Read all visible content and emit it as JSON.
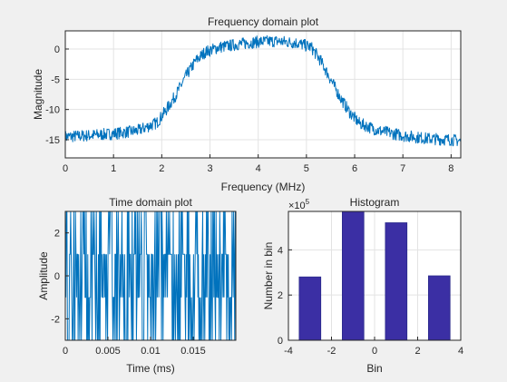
{
  "window": {
    "background": "#f0f0f0"
  },
  "chart_data": [
    {
      "id": "freq",
      "type": "line",
      "title": "Frequency domain plot",
      "xlabel": "Frequency (MHz)",
      "ylabel": "Magnitude",
      "xlim": [
        0,
        8.2
      ],
      "ylim": [
        -18,
        3
      ],
      "xticks": [
        0,
        1,
        2,
        3,
        4,
        5,
        6,
        7,
        8
      ],
      "yticks": [
        0,
        -5,
        -10,
        -15
      ],
      "grid": true,
      "color": "#0072bd",
      "series": [
        {
          "x": [
            0,
            0.5,
            1.0,
            1.5,
            1.9,
            2.1,
            2.3,
            2.5,
            2.7,
            2.9,
            3.2,
            3.6,
            4.0,
            4.4,
            4.8,
            5.1,
            5.3,
            5.5,
            5.7,
            5.9,
            6.1,
            6.5,
            7.0,
            7.5,
            8.0,
            8.2
          ],
          "y": [
            -14.5,
            -14.3,
            -14,
            -13.5,
            -12.2,
            -10,
            -7.5,
            -4.5,
            -2,
            -0.5,
            0.3,
            0.8,
            1.2,
            1.3,
            1,
            0.3,
            -2,
            -5,
            -8,
            -10.5,
            -12.3,
            -13.5,
            -14.3,
            -14.8,
            -15,
            -15.2
          ],
          "noise": 1.0
        }
      ]
    },
    {
      "id": "time",
      "type": "line",
      "title": "Time domain plot",
      "xlabel": "Time (ms)",
      "ylabel": "Amplitude",
      "xlim": [
        0,
        0.02
      ],
      "ylim": [
        -3,
        3
      ],
      "xticks": [
        0,
        0.005,
        0.01,
        0.015
      ],
      "xtick_labels": [
        "0",
        "0.005",
        "0.01",
        "0.015"
      ],
      "yticks": [
        2,
        0,
        -2
      ],
      "grid": false,
      "color": "#0072bd",
      "levels": [
        -3,
        -1,
        1,
        3
      ],
      "series": [
        {
          "y": [
            3,
            -3,
            1,
            -1,
            3,
            1,
            -3,
            -1,
            1,
            3,
            -3,
            -1,
            3,
            1,
            -1,
            -3,
            3,
            -1,
            1,
            -3,
            1,
            3,
            -1,
            -3,
            3,
            1,
            -1,
            1,
            -3,
            3,
            -1,
            -3,
            1,
            3,
            -1,
            1,
            -3,
            3,
            1,
            -1,
            -3,
            1,
            3,
            -1,
            3,
            -3,
            1,
            -1,
            3,
            1,
            -3,
            -1,
            1,
            -3,
            3,
            1,
            -1,
            3,
            -3,
            -1,
            1,
            3,
            -1,
            -3,
            1,
            -1,
            3,
            1,
            -3,
            3,
            -1,
            1,
            -3,
            -1,
            3,
            1,
            -1,
            -3,
            3,
            1
          ]
        }
      ]
    },
    {
      "id": "hist",
      "type": "bar",
      "title": "Histogram",
      "xlabel": "Bin",
      "ylabel": "Number in bin",
      "exponent_label": "×10",
      "exponent_power": "5",
      "xlim": [
        -4,
        4
      ],
      "ylim": [
        0,
        570000
      ],
      "xticks": [
        -4,
        -2,
        0,
        2,
        4
      ],
      "yticks": [
        0,
        200000,
        400000
      ],
      "ytick_labels": [
        "0",
        "2",
        "4"
      ],
      "grid": true,
      "color": "#3b2fa4",
      "edge_color": "#2a2a8a",
      "bar_width": 1,
      "x": [
        -3,
        -2,
        -1,
        0,
        1,
        2,
        3
      ],
      "values": [
        280000,
        0,
        570000,
        0,
        520000,
        0,
        285000
      ]
    }
  ]
}
